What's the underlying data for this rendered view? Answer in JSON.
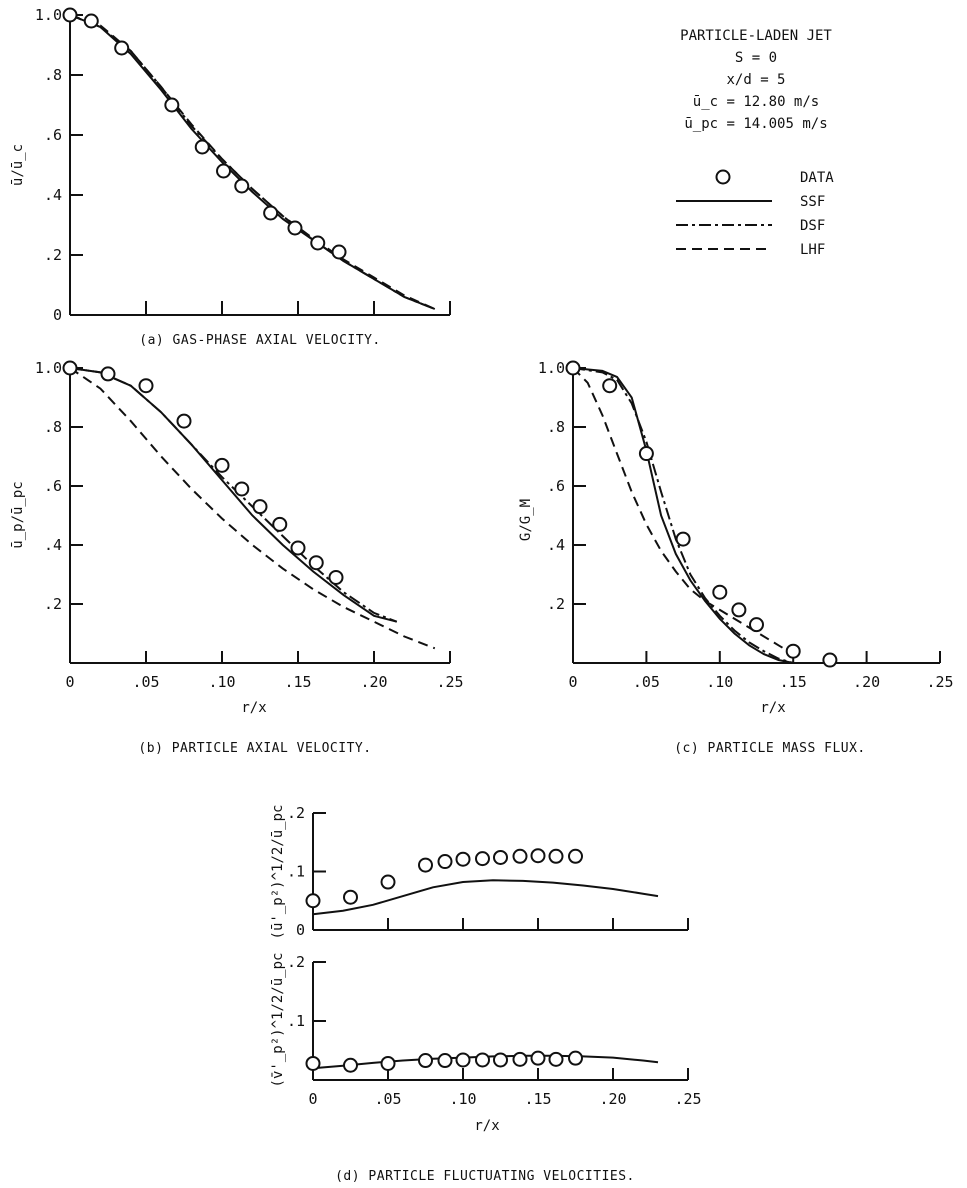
{
  "legend": {
    "title": "PARTICLE-LADEN JET",
    "lines": [
      "S = 0",
      "x/d = 5",
      "ū_c = 12.80 m/s",
      "ū_pc = 14.005 m/s"
    ],
    "entries": [
      {
        "label": "DATA",
        "style": "circle"
      },
      {
        "label": "SSF",
        "style": "solid"
      },
      {
        "label": "DSF",
        "style": "dashdot"
      },
      {
        "label": "LHF",
        "style": "dashed"
      }
    ]
  },
  "chart_data": [
    {
      "id": "a",
      "type": "line",
      "caption": "(a) GAS-PHASE AXIAL VELOCITY.",
      "xlabel": "",
      "ylabel": "ū/ū_c",
      "xlim": [
        0,
        0.25
      ],
      "ylim": [
        0,
        1.0
      ],
      "xtick_labels": [],
      "xticks": [
        0.05,
        0.1,
        0.15,
        0.2,
        0.25
      ],
      "yticks": [
        0,
        0.2,
        0.4,
        0.6,
        0.8,
        1.0
      ],
      "ytick_labels": [
        "0",
        ".2",
        ".4",
        ".6",
        ".8",
        "1.0"
      ],
      "data": {
        "x": [
          0.0,
          0.014,
          0.034,
          0.067,
          0.087,
          0.101,
          0.113,
          0.132,
          0.148,
          0.163,
          0.177
        ],
        "y": [
          1.0,
          0.98,
          0.89,
          0.7,
          0.56,
          0.48,
          0.43,
          0.34,
          0.29,
          0.24,
          0.21
        ]
      },
      "series": [
        {
          "name": "SSF",
          "style": "solid",
          "x": [
            0,
            0.02,
            0.04,
            0.06,
            0.08,
            0.1,
            0.12,
            0.14,
            0.16,
            0.18,
            0.2,
            0.22,
            0.24
          ],
          "y": [
            1.0,
            0.96,
            0.87,
            0.75,
            0.62,
            0.51,
            0.41,
            0.32,
            0.25,
            0.18,
            0.12,
            0.06,
            0.02
          ]
        },
        {
          "name": "DSF",
          "style": "dashdot",
          "x": [
            0,
            0.02,
            0.04,
            0.06,
            0.08,
            0.1,
            0.12,
            0.14,
            0.16,
            0.18,
            0.2,
            0.22,
            0.24
          ],
          "y": [
            1.0,
            0.96,
            0.88,
            0.76,
            0.63,
            0.52,
            0.42,
            0.33,
            0.25,
            0.18,
            0.12,
            0.06,
            0.02
          ]
        },
        {
          "name": "LHF",
          "style": "dashed",
          "x": [
            0,
            0.02,
            0.04,
            0.06,
            0.08,
            0.1,
            0.12,
            0.14,
            0.16,
            0.18,
            0.2,
            0.22,
            0.24
          ],
          "y": [
            1.0,
            0.965,
            0.88,
            0.76,
            0.635,
            0.52,
            0.42,
            0.33,
            0.255,
            0.185,
            0.125,
            0.065,
            0.02
          ]
        }
      ]
    },
    {
      "id": "b",
      "type": "line",
      "caption": "(b) PARTICLE AXIAL VELOCITY.",
      "xlabel": "r/x",
      "ylabel": "ū_p/ū_pc",
      "xlim": [
        0,
        0.25
      ],
      "ylim": [
        0,
        1.0
      ],
      "xticks": [
        0,
        0.05,
        0.1,
        0.15,
        0.2,
        0.25
      ],
      "xtick_labels": [
        "0",
        ".05",
        ".10",
        ".15",
        ".20",
        ".25"
      ],
      "yticks": [
        0.2,
        0.4,
        0.6,
        0.8,
        1.0
      ],
      "ytick_labels": [
        ".2",
        ".4",
        ".6",
        ".8",
        "1.0"
      ],
      "data": {
        "x": [
          0.0,
          0.025,
          0.05,
          0.075,
          0.1,
          0.113,
          0.125,
          0.138,
          0.15,
          0.162,
          0.175
        ],
        "y": [
          1.0,
          0.98,
          0.94,
          0.82,
          0.67,
          0.59,
          0.53,
          0.47,
          0.39,
          0.34,
          0.29
        ]
      },
      "series": [
        {
          "name": "SSF",
          "style": "solid",
          "x": [
            0,
            0.02,
            0.04,
            0.06,
            0.08,
            0.1,
            0.12,
            0.14,
            0.16,
            0.18,
            0.2,
            0.215
          ],
          "y": [
            1.0,
            0.985,
            0.94,
            0.85,
            0.74,
            0.62,
            0.5,
            0.4,
            0.31,
            0.23,
            0.16,
            0.14
          ]
        },
        {
          "name": "DSF",
          "style": "dashdot",
          "x": [
            0,
            0.02,
            0.04,
            0.06,
            0.08,
            0.1,
            0.12,
            0.14,
            0.16,
            0.18,
            0.2,
            0.215
          ],
          "y": [
            1.0,
            0.985,
            0.94,
            0.85,
            0.74,
            0.63,
            0.53,
            0.43,
            0.33,
            0.24,
            0.17,
            0.14
          ]
        },
        {
          "name": "LHF",
          "style": "dashed",
          "x": [
            0,
            0.02,
            0.04,
            0.06,
            0.08,
            0.1,
            0.12,
            0.14,
            0.16,
            0.18,
            0.2,
            0.22,
            0.24
          ],
          "y": [
            1.0,
            0.93,
            0.82,
            0.7,
            0.59,
            0.49,
            0.4,
            0.32,
            0.25,
            0.19,
            0.14,
            0.09,
            0.05
          ]
        }
      ]
    },
    {
      "id": "c",
      "type": "line",
      "caption": "(c) PARTICLE MASS FLUX.",
      "xlabel": "r/x",
      "ylabel": "G/G_M",
      "xlim": [
        0,
        0.25
      ],
      "ylim": [
        0,
        1.0
      ],
      "xticks": [
        0,
        0.05,
        0.1,
        0.15,
        0.2,
        0.25
      ],
      "xtick_labels": [
        "0",
        ".05",
        ".10",
        ".15",
        ".20",
        ".25"
      ],
      "yticks": [
        0.2,
        0.4,
        0.6,
        0.8,
        1.0
      ],
      "ytick_labels": [
        ".2",
        ".4",
        ".6",
        ".8",
        "1.0"
      ],
      "data": {
        "x": [
          0.0,
          0.025,
          0.05,
          0.075,
          0.1,
          0.113,
          0.125,
          0.15,
          0.175
        ],
        "y": [
          1.0,
          0.94,
          0.71,
          0.42,
          0.24,
          0.18,
          0.13,
          0.04,
          0.01
        ]
      },
      "series": [
        {
          "name": "SSF",
          "style": "solid",
          "x": [
            0,
            0.02,
            0.03,
            0.04,
            0.05,
            0.06,
            0.07,
            0.08,
            0.09,
            0.1,
            0.11,
            0.12,
            0.13,
            0.14,
            0.15
          ],
          "y": [
            1.0,
            0.99,
            0.97,
            0.9,
            0.72,
            0.5,
            0.37,
            0.28,
            0.21,
            0.15,
            0.1,
            0.06,
            0.03,
            0.01,
            0.0
          ]
        },
        {
          "name": "DSF",
          "style": "dashdot",
          "x": [
            0,
            0.02,
            0.03,
            0.04,
            0.05,
            0.06,
            0.07,
            0.08,
            0.09,
            0.1,
            0.11,
            0.12,
            0.13,
            0.14,
            0.15
          ],
          "y": [
            1.0,
            0.985,
            0.96,
            0.88,
            0.75,
            0.58,
            0.42,
            0.3,
            0.22,
            0.16,
            0.11,
            0.07,
            0.04,
            0.015,
            0.0
          ]
        },
        {
          "name": "LHF",
          "style": "dashed",
          "x": [
            0,
            0.01,
            0.02,
            0.03,
            0.04,
            0.05,
            0.06,
            0.07,
            0.08,
            0.09,
            0.1,
            0.12,
            0.14,
            0.15
          ],
          "y": [
            1.0,
            0.95,
            0.84,
            0.71,
            0.58,
            0.47,
            0.38,
            0.31,
            0.25,
            0.21,
            0.18,
            0.12,
            0.06,
            0.03
          ]
        }
      ]
    },
    {
      "id": "d1",
      "type": "line",
      "caption": "",
      "xlabel": "",
      "ylabel": "(ū'_p²)^1/2/ū_pc",
      "xlim": [
        0,
        0.25
      ],
      "ylim": [
        0,
        0.2
      ],
      "xticks": [
        0.05,
        0.1,
        0.15,
        0.2,
        0.25
      ],
      "xtick_labels": [],
      "yticks": [
        0,
        0.1,
        0.2
      ],
      "ytick_labels": [
        "0",
        ".1",
        ".2"
      ],
      "data": {
        "x": [
          0.0,
          0.025,
          0.05,
          0.075,
          0.088,
          0.1,
          0.113,
          0.125,
          0.138,
          0.15,
          0.162,
          0.175
        ],
        "y": [
          0.05,
          0.056,
          0.082,
          0.111,
          0.117,
          0.121,
          0.122,
          0.124,
          0.126,
          0.127,
          0.126,
          0.126
        ]
      },
      "series": [
        {
          "name": "SSF",
          "style": "solid",
          "x": [
            0,
            0.02,
            0.04,
            0.06,
            0.08,
            0.1,
            0.12,
            0.14,
            0.16,
            0.18,
            0.2,
            0.22,
            0.23
          ],
          "y": [
            0.027,
            0.033,
            0.043,
            0.058,
            0.073,
            0.082,
            0.085,
            0.084,
            0.081,
            0.076,
            0.07,
            0.062,
            0.058
          ]
        }
      ]
    },
    {
      "id": "d2",
      "type": "line",
      "caption": "(d) PARTICLE FLUCTUATING VELOCITIES.",
      "xlabel": "r/x",
      "ylabel": "(v̄'_p²)^1/2/ū_pc",
      "xlim": [
        0,
        0.25
      ],
      "ylim": [
        0,
        0.2
      ],
      "xticks": [
        0,
        0.05,
        0.1,
        0.15,
        0.2,
        0.25
      ],
      "xtick_labels": [
        "0",
        ".05",
        ".10",
        ".15",
        ".20",
        ".25"
      ],
      "yticks": [
        0.1,
        0.2
      ],
      "ytick_labels": [
        ".1",
        ".2"
      ],
      "data": {
        "x": [
          0.0,
          0.025,
          0.05,
          0.075,
          0.088,
          0.1,
          0.113,
          0.125,
          0.138,
          0.15,
          0.162,
          0.175
        ],
        "y": [
          0.028,
          0.025,
          0.028,
          0.033,
          0.033,
          0.034,
          0.034,
          0.034,
          0.035,
          0.037,
          0.035,
          0.037
        ]
      },
      "series": [
        {
          "name": "SSF",
          "style": "solid",
          "x": [
            0,
            0.02,
            0.04,
            0.06,
            0.08,
            0.1,
            0.12,
            0.14,
            0.16,
            0.18,
            0.2,
            0.22,
            0.23
          ],
          "y": [
            0.02,
            0.024,
            0.029,
            0.033,
            0.036,
            0.038,
            0.04,
            0.041,
            0.041,
            0.04,
            0.038,
            0.033,
            0.03
          ]
        }
      ]
    }
  ]
}
